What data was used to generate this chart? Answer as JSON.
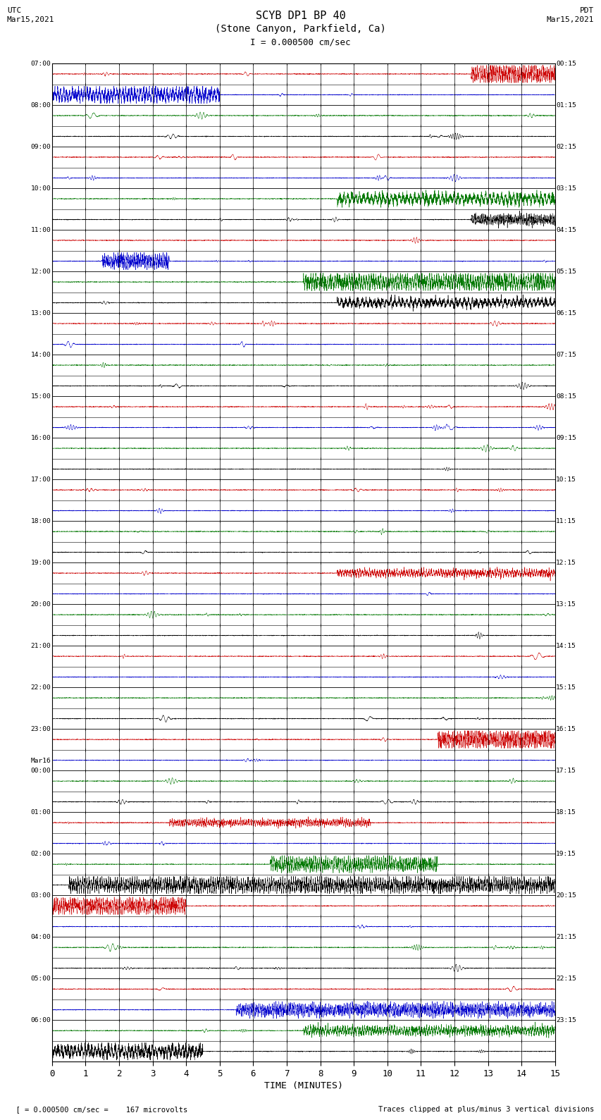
{
  "title_line1": "SCYB DP1 BP 40",
  "title_line2": "(Stone Canyon, Parkfield, Ca)",
  "scale_text": "I = 0.000500 cm/sec",
  "left_label": "UTC\nMar15,2021",
  "right_label": "PDT\nMar15,2021",
  "xlabel": "TIME (MINUTES)",
  "footer_left": "  [ = 0.000500 cm/sec =    167 microvolts",
  "footer_right": "Traces clipped at plus/minus 3 vertical divisions",
  "background_color": "#ffffff",
  "xlim": [
    0,
    15
  ],
  "num_rows": 48,
  "left_time_labels": [
    "07:00",
    "",
    "08:00",
    "",
    "09:00",
    "",
    "10:00",
    "",
    "11:00",
    "",
    "12:00",
    "",
    "13:00",
    "",
    "14:00",
    "",
    "15:00",
    "",
    "16:00",
    "",
    "17:00",
    "",
    "18:00",
    "",
    "19:00",
    "",
    "20:00",
    "",
    "21:00",
    "",
    "22:00",
    "",
    "23:00",
    "",
    "Mar16\n00:00",
    "",
    "01:00",
    "",
    "02:00",
    "",
    "03:00",
    "",
    "04:00",
    "",
    "05:00",
    "",
    "06:00",
    ""
  ],
  "right_time_labels": [
    "00:15",
    "",
    "01:15",
    "",
    "02:15",
    "",
    "03:15",
    "",
    "04:15",
    "",
    "05:15",
    "",
    "06:15",
    "",
    "07:15",
    "",
    "08:15",
    "",
    "09:15",
    "",
    "10:15",
    "",
    "11:15",
    "",
    "12:15",
    "",
    "13:15",
    "",
    "14:15",
    "",
    "15:15",
    "",
    "16:15",
    "",
    "17:15",
    "",
    "18:15",
    "",
    "19:15",
    "",
    "20:15",
    "",
    "21:15",
    "",
    "22:15",
    "",
    "23:15",
    ""
  ],
  "color_map": {
    "red": "#cc0000",
    "blue": "#0000cc",
    "green": "#007700",
    "black": "#000000"
  },
  "row_color_pattern": [
    "red",
    "blue",
    "green",
    "black"
  ]
}
